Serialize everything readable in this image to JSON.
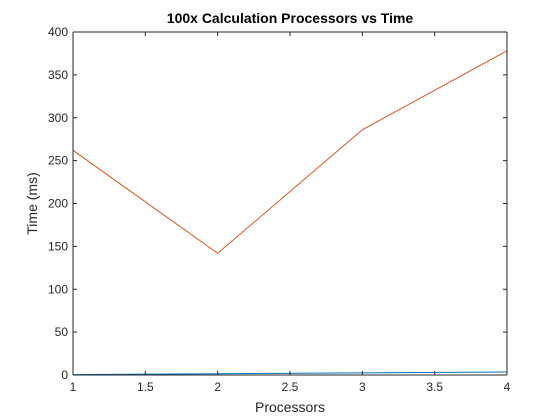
{
  "chart_data": {
    "type": "line",
    "title": "100x Calculation Processors vs Time",
    "xlabel": "Processors",
    "ylabel": "Time (ms)",
    "xlim": [
      1,
      4
    ],
    "ylim": [
      0,
      400
    ],
    "x_ticks": [
      "1",
      "1.5",
      "2",
      "2.5",
      "3",
      "3.5",
      "4"
    ],
    "y_ticks": [
      "0",
      "50",
      "100",
      "150",
      "200",
      "250",
      "300",
      "350",
      "400"
    ],
    "x_tick_values": [
      1,
      1.5,
      2,
      2.5,
      3,
      3.5,
      4
    ],
    "y_tick_values": [
      0,
      50,
      100,
      150,
      200,
      250,
      300,
      350,
      400
    ],
    "grid": false,
    "series": [
      {
        "color": "#0072BD",
        "x": [
          1,
          2,
          3,
          4
        ],
        "y": [
          0.5,
          1.5,
          2.5,
          3.5
        ]
      },
      {
        "color": "#D95319",
        "x": [
          1,
          2,
          3,
          4
        ],
        "y": [
          262,
          142,
          286,
          378
        ]
      }
    ]
  }
}
